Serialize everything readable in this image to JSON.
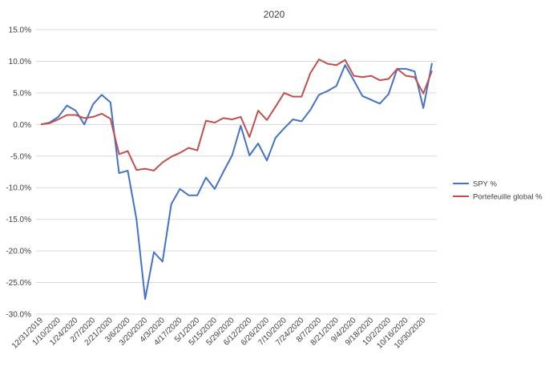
{
  "colors": {
    "spy": "#4472C4",
    "portfolio": "#C0504D",
    "grid": "#D9D9D9",
    "text": "#404040"
  },
  "chart_data": {
    "type": "line",
    "title": "2020",
    "xlabel": "",
    "ylabel": "",
    "ylim": [
      -30,
      15
    ],
    "y_tick_step": 5,
    "y_ticks": [
      "15.0%",
      "10.0%",
      "5.0%",
      "0.0%",
      "-5.0%",
      "-10.0%",
      "-15.0%",
      "-20.0%",
      "-25.0%",
      "-30.0%"
    ],
    "x_tick_labels": [
      "12/31/2019",
      "1/10/2020",
      "1/24/2020",
      "2/7/2020",
      "2/21/2020",
      "3/6/2020",
      "3/20/2020",
      "4/3/2020",
      "4/17/2020",
      "5/1/2020",
      "5/15/2020",
      "5/29/2020",
      "6/12/2020",
      "6/26/2020",
      "7/10/2020",
      "7/24/2020",
      "8/7/2020",
      "8/21/2020",
      "9/4/2020",
      "9/18/2020",
      "10/2/2020",
      "10/16/2020",
      "10/30/2020"
    ],
    "grid": true,
    "legend_position": "right",
    "series": [
      {
        "name": "SPY %",
        "color": "#4472C4",
        "values": [
          0.0,
          0.3,
          1.2,
          3.0,
          2.2,
          0.0,
          3.2,
          4.7,
          3.5,
          -7.7,
          -7.3,
          -15.0,
          -27.6,
          -20.2,
          -21.7,
          -12.6,
          -10.2,
          -11.2,
          -11.2,
          -8.4,
          -10.2,
          -7.5,
          -4.9,
          -0.2,
          -4.9,
          -3.0,
          -5.7,
          -2.1,
          -0.6,
          0.8,
          0.5,
          2.3,
          4.7,
          5.3,
          6.1,
          9.4,
          7.0,
          4.5,
          3.9,
          3.3,
          4.8,
          8.8,
          8.8,
          8.4,
          2.6,
          9.7
        ]
      },
      {
        "name": "Portefeuille global %",
        "color": "#C0504D",
        "values": [
          0.0,
          0.2,
          0.8,
          1.5,
          1.5,
          1.0,
          1.2,
          1.7,
          0.9,
          -4.7,
          -4.2,
          -7.2,
          -7.0,
          -7.3,
          -6.0,
          -5.1,
          -4.5,
          -3.7,
          -4.1,
          0.6,
          0.3,
          1.0,
          0.8,
          1.2,
          -2.0,
          2.2,
          0.7,
          2.8,
          5.0,
          4.4,
          4.4,
          8.1,
          10.3,
          9.6,
          9.4,
          10.2,
          7.7,
          7.5,
          7.7,
          7.0,
          7.2,
          8.8,
          7.7,
          7.5,
          4.9,
          8.5
        ]
      }
    ]
  }
}
